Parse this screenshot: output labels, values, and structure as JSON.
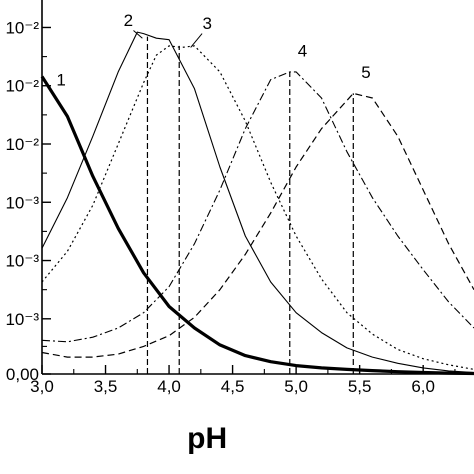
{
  "chart_data": {
    "type": "line",
    "xlabel": "pH",
    "ylabel": "",
    "xlim": [
      3.0,
      6.4
    ],
    "ylim": [
      0.0,
      0.024
    ],
    "grid": false,
    "x_ticks": [
      "3,0",
      "3,5",
      "4,0",
      "4,5",
      "5,0",
      "5,5",
      "6,0"
    ],
    "x_tick_values": [
      3.0,
      3.5,
      4.0,
      4.5,
      5.0,
      5.5,
      6.0
    ],
    "y_tick_labels": [
      "0,00",
      "10⁻³",
      "10⁻³",
      "10⁻³",
      "10⁻²",
      "10⁻²",
      "10⁻²"
    ],
    "y_tick_values": [
      0.0,
      0.0036,
      0.0074,
      0.0112,
      0.015,
      0.0188,
      0.0226
    ],
    "series": [
      {
        "name": "1",
        "style": "thick-solid",
        "x": [
          3.0,
          3.2,
          3.4,
          3.6,
          3.8,
          4.0,
          4.2,
          4.4,
          4.6,
          4.8,
          5.0,
          5.2,
          5.4,
          5.6,
          5.8,
          6.0,
          6.2,
          6.4
        ],
        "y": [
          0.0194,
          0.0168,
          0.0129,
          0.0095,
          0.0066,
          0.0044,
          0.003,
          0.0019,
          0.0012,
          0.0008,
          0.00055,
          0.0004,
          0.0003,
          0.00022,
          0.00015,
          0.0001,
          6e-05,
          3e-05
        ]
      },
      {
        "name": "2",
        "style": "solid",
        "x": [
          3.0,
          3.2,
          3.4,
          3.6,
          3.75,
          3.8,
          3.9,
          4.0,
          4.2,
          4.4,
          4.6,
          4.8,
          5.0,
          5.2,
          5.4,
          5.6,
          5.8,
          6.0,
          6.2,
          6.4
        ],
        "y": [
          0.0082,
          0.0115,
          0.0155,
          0.0197,
          0.0223,
          0.0222,
          0.0219,
          0.0218,
          0.0186,
          0.0135,
          0.009,
          0.006,
          0.004,
          0.0027,
          0.0017,
          0.0011,
          0.0007,
          0.0004,
          0.0002,
          0.0001
        ]
      },
      {
        "name": "3",
        "style": "dotted",
        "x": [
          3.0,
          3.2,
          3.4,
          3.6,
          3.8,
          3.9,
          4.0,
          4.1,
          4.2,
          4.4,
          4.6,
          4.8,
          5.0,
          5.2,
          5.4,
          5.6,
          5.8,
          6.0,
          6.2,
          6.4
        ],
        "y": [
          0.006,
          0.008,
          0.011,
          0.015,
          0.019,
          0.0208,
          0.0214,
          0.0213,
          0.0214,
          0.0197,
          0.0165,
          0.0125,
          0.009,
          0.0062,
          0.004,
          0.0026,
          0.0016,
          0.001,
          0.0006,
          0.0003
        ]
      },
      {
        "name": "4",
        "style": "dash-dot",
        "x": [
          3.0,
          3.2,
          3.4,
          3.6,
          3.8,
          4.0,
          4.2,
          4.4,
          4.6,
          4.8,
          4.95,
          5.0,
          5.2,
          5.4,
          5.6,
          5.8,
          6.0,
          6.2,
          6.4
        ],
        "y": [
          0.0022,
          0.0021,
          0.0024,
          0.003,
          0.004,
          0.0057,
          0.0085,
          0.012,
          0.016,
          0.0192,
          0.0197,
          0.0197,
          0.018,
          0.0145,
          0.0115,
          0.009,
          0.0068,
          0.0047,
          0.003
        ]
      },
      {
        "name": "5",
        "style": "dashed",
        "x": [
          3.0,
          3.2,
          3.4,
          3.6,
          3.8,
          4.0,
          4.2,
          4.4,
          4.6,
          4.8,
          5.0,
          5.2,
          5.45,
          5.6,
          5.8,
          6.0,
          6.2,
          6.4
        ],
        "y": [
          0.0014,
          0.0011,
          0.0011,
          0.0013,
          0.0018,
          0.0025,
          0.0037,
          0.0055,
          0.0078,
          0.0105,
          0.0135,
          0.016,
          0.0183,
          0.018,
          0.0155,
          0.012,
          0.0085,
          0.0055
        ]
      }
    ],
    "vlines": [
      {
        "x": 3.83,
        "ymax": 0.022
      },
      {
        "x": 4.08,
        "ymax": 0.0214
      },
      {
        "x": 4.95,
        "ymax": 0.0197
      },
      {
        "x": 5.45,
        "ymax": 0.0183
      }
    ],
    "annotations": [
      {
        "text": "1",
        "x": 3.15,
        "y": 0.0188
      },
      {
        "text": "2",
        "x": 3.68,
        "y": 0.0227
      },
      {
        "text": "3",
        "x": 4.3,
        "y": 0.0225
      },
      {
        "text": "4",
        "x": 5.05,
        "y": 0.0207
      },
      {
        "text": "5",
        "x": 5.55,
        "y": 0.0193
      }
    ]
  }
}
